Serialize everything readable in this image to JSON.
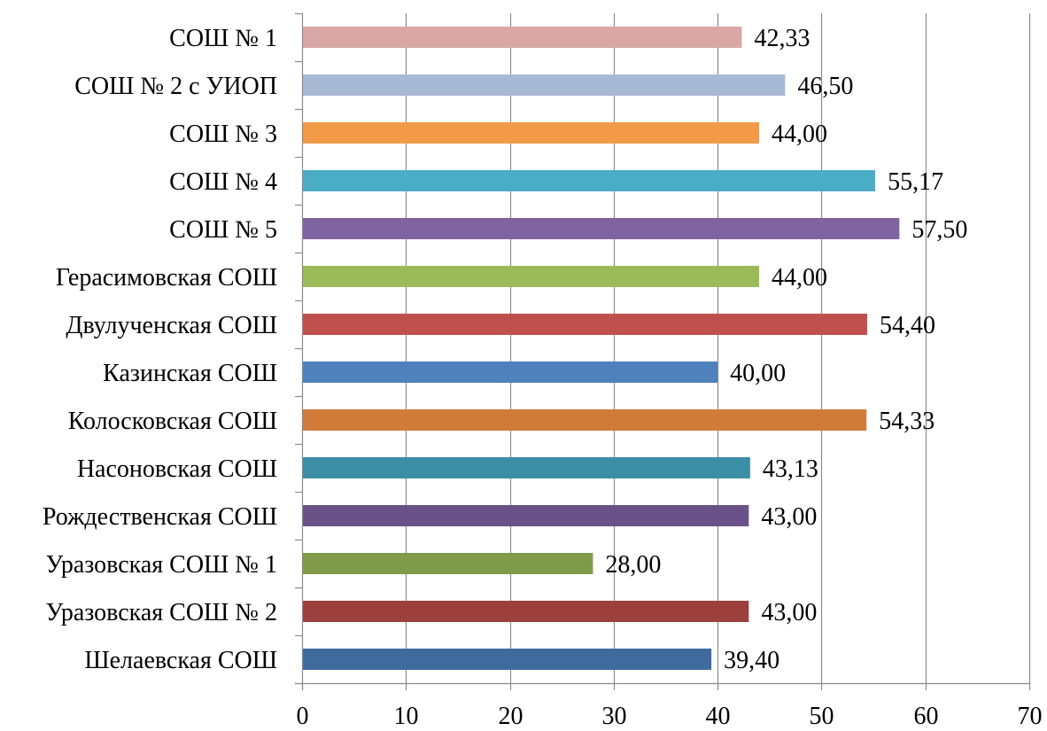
{
  "chart_data": {
    "type": "bar",
    "orientation": "horizontal",
    "categories": [
      "СОШ № 1",
      "СОШ № 2 с УИОП",
      "СОШ № 3",
      "СОШ № 4",
      "СОШ № 5",
      "Герасимовская СОШ",
      "Двулученская СОШ",
      "Казинская СОШ",
      "Колосковская СОШ",
      "Насоновская СОШ",
      "Рождественская СОШ",
      "Уразовская СОШ № 1",
      "Уразовская СОШ № 2",
      "Шелаевская СОШ"
    ],
    "values": [
      42.33,
      46.5,
      44.0,
      55.17,
      57.5,
      44.0,
      54.4,
      40.0,
      54.33,
      43.13,
      43.0,
      28.0,
      43.0,
      39.4
    ],
    "value_labels": [
      "42,33",
      "46,50",
      "44,00",
      "55,17",
      "57,50",
      "44,00",
      "54,40",
      "40,00",
      "54,33",
      "43,13",
      "43,00",
      "28,00",
      "43,00",
      "39,40"
    ],
    "colors": [
      "#D9A7A6",
      "#A8B9D6",
      "#F39A48",
      "#4BACC6",
      "#8064A2",
      "#9BBB59",
      "#C0504D",
      "#4F81BD",
      "#D07B3A",
      "#3B8EA5",
      "#6A5188",
      "#7F9A48",
      "#9C3F3D",
      "#3E6A9E"
    ],
    "xlim": [
      0,
      70
    ],
    "x_ticks": [
      "0",
      "10",
      "20",
      "30",
      "40",
      "50",
      "60",
      "70"
    ],
    "grid": true,
    "legend": "none",
    "title": "",
    "xlabel": "",
    "ylabel": ""
  }
}
